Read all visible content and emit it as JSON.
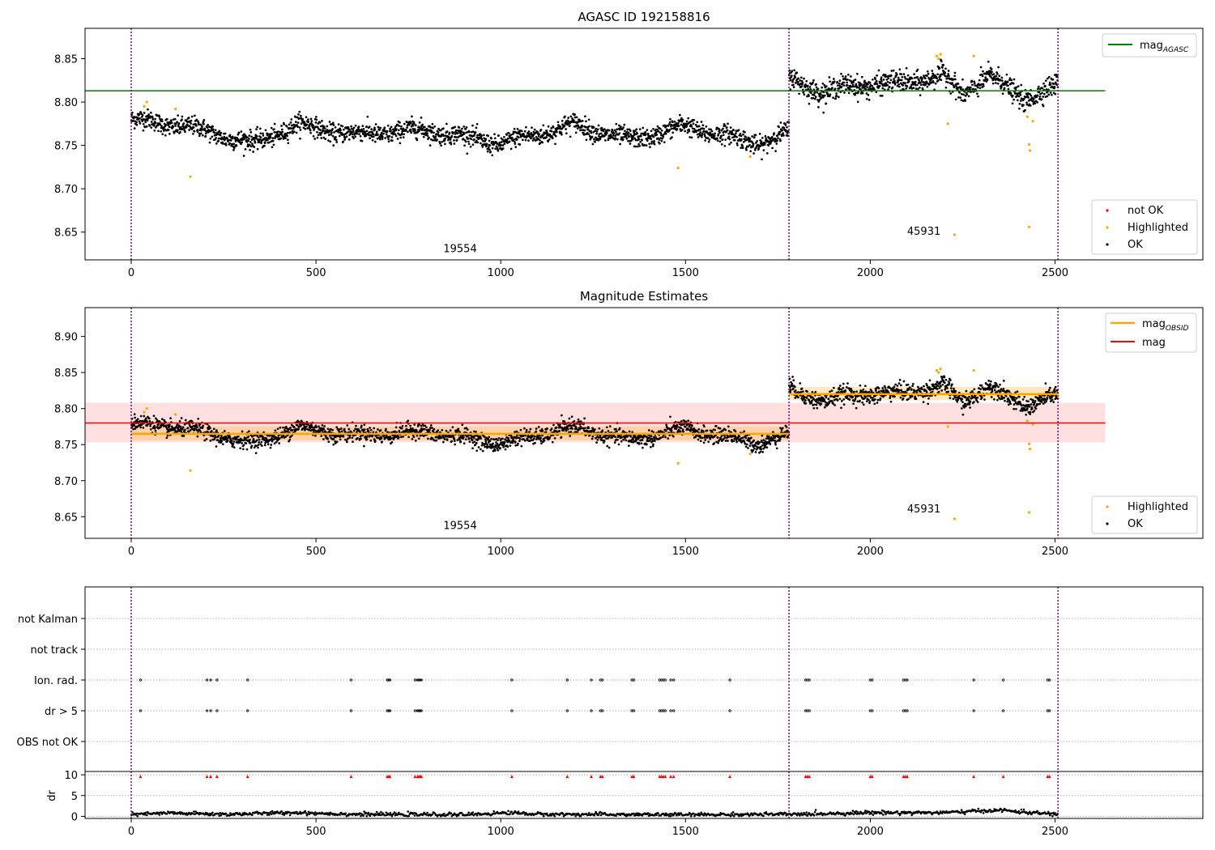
{
  "chart_data": [
    {
      "type": "scatter",
      "title": "AGASC ID 192158816",
      "xlabel": "",
      "ylabel": "",
      "xlim": [
        -125,
        2900
      ],
      "ylim": [
        8.618,
        8.885
      ],
      "xticks": [
        "0",
        "500",
        "1000",
        "1500",
        "2000",
        "2500"
      ],
      "yticks": [
        "8.65",
        "8.70",
        "8.75",
        "8.80",
        "8.85"
      ],
      "obsid_boundaries": [
        0,
        1780,
        2508
      ],
      "obsid_labels": [
        {
          "text": "19554",
          "x": 890,
          "y": 8.627
        },
        {
          "text": "45931",
          "x": 2145,
          "y": 8.647
        }
      ],
      "lines": [
        {
          "name": "mag_AGASC",
          "legend": "mag",
          "legend_sub": "AGASC",
          "color": "#008000",
          "y": 8.813,
          "x_range": [
            -125,
            2636
          ]
        }
      ],
      "series": [
        {
          "name": "not OK",
          "color": "#ff0000",
          "points": []
        },
        {
          "name": "Highlighted",
          "color": "#ffa500",
          "points": [
            [
              35,
              8.795
            ],
            [
              42,
              8.8
            ],
            [
              120,
              8.792
            ],
            [
              160,
              8.714
            ],
            [
              1480,
              8.724
            ],
            [
              1675,
              8.737
            ],
            [
              2180,
              8.853
            ],
            [
              2190,
              8.855
            ],
            [
              2185,
              8.85
            ],
            [
              2210,
              8.775
            ],
            [
              2228,
              8.647
            ],
            [
              2280,
              8.853
            ],
            [
              2425,
              8.783
            ],
            [
              2430,
              8.751
            ],
            [
              2432,
              8.744
            ],
            [
              2430,
              8.656
            ],
            [
              2440,
              8.778
            ]
          ]
        },
        {
          "name": "OK",
          "color": "#000000",
          "segments": [
            {
              "x0": 0,
              "x1": 1780,
              "levels": [
                [
                  0,
                  8.78
                ],
                [
                  150,
                  8.772
                ],
                [
                  330,
                  8.752
                ],
                [
                  450,
                  8.774
                ],
                [
                  600,
                  8.763
                ],
                [
                  800,
                  8.768
                ],
                [
                  1000,
                  8.752
                ],
                [
                  1200,
                  8.774
                ],
                [
                  1350,
                  8.756
                ],
                [
                  1500,
                  8.772
                ],
                [
                  1700,
                  8.752
                ],
                [
                  1780,
                  8.765
                ]
              ],
              "spread": 0.009
            },
            {
              "x0": 1780,
              "x1": 2508,
              "levels": [
                [
                  1780,
                  8.828
                ],
                [
                  1880,
                  8.81
                ],
                [
                  1950,
                  8.82
                ],
                [
                  2050,
                  8.82
                ],
                [
                  2200,
                  8.83
                ],
                [
                  2250,
                  8.81
                ],
                [
                  2320,
                  8.83
                ],
                [
                  2420,
                  8.804
                ],
                [
                  2508,
                  8.818
                ]
              ],
              "spread": 0.01
            }
          ]
        }
      ],
      "legend": {
        "placement": "lower-right",
        "entries": [
          "not OK",
          "Highlighted",
          "OK"
        ]
      }
    },
    {
      "type": "scatter",
      "title": "Magnitude Estimates",
      "xlabel": "",
      "ylabel": "",
      "xlim": [
        -125,
        2900
      ],
      "ylim": [
        8.62,
        8.94
      ],
      "xticks": [
        "0",
        "500",
        "1000",
        "1500",
        "2000",
        "2500"
      ],
      "yticks": [
        "8.65",
        "8.70",
        "8.75",
        "8.80",
        "8.85",
        "8.90"
      ],
      "obsid_boundaries": [
        0,
        1780,
        2508
      ],
      "obsid_labels": [
        {
          "text": "19554",
          "x": 890,
          "y": 8.633
        },
        {
          "text": "45931",
          "x": 2145,
          "y": 8.656
        }
      ],
      "bands": [
        {
          "name": "mag",
          "color": "#ff0000",
          "y0": 8.753,
          "y1": 8.808,
          "x_range": [
            -125,
            2636
          ]
        },
        {
          "name": "mag_OBSID 19554",
          "color": "#ffa500",
          "y0": 8.756,
          "y1": 8.775,
          "x_range": [
            0,
            1780
          ]
        },
        {
          "name": "mag_OBSID 45931",
          "color": "#ffa500",
          "y0": 8.812,
          "y1": 8.83,
          "x_range": [
            1780,
            2508
          ]
        }
      ],
      "lines": [
        {
          "name": "mag_OBSID",
          "legend": "mag",
          "legend_sub": "OBSID",
          "color": "#ffa500",
          "segments": [
            [
              0,
              1780,
              8.765
            ],
            [
              1780,
              2508,
              8.82
            ]
          ]
        },
        {
          "name": "mag",
          "legend": "mag",
          "color": "#ff0000",
          "y": 8.78,
          "x_range": [
            -125,
            2636
          ]
        }
      ],
      "series": [
        {
          "name": "Highlighted",
          "color": "#ffa500",
          "points": [
            [
              35,
              8.795
            ],
            [
              42,
              8.8
            ],
            [
              120,
              8.792
            ],
            [
              160,
              8.714
            ],
            [
              1480,
              8.724
            ],
            [
              1675,
              8.737
            ],
            [
              2180,
              8.853
            ],
            [
              2190,
              8.855
            ],
            [
              2185,
              8.85
            ],
            [
              2210,
              8.775
            ],
            [
              2228,
              8.647
            ],
            [
              2280,
              8.853
            ],
            [
              2425,
              8.783
            ],
            [
              2430,
              8.751
            ],
            [
              2432,
              8.744
            ],
            [
              2430,
              8.656
            ],
            [
              2440,
              8.778
            ]
          ]
        },
        {
          "name": "OK",
          "color": "#000000",
          "segments": [
            {
              "x0": 0,
              "x1": 1780,
              "levels": [
                [
                  0,
                  8.78
                ],
                [
                  150,
                  8.772
                ],
                [
                  330,
                  8.752
                ],
                [
                  450,
                  8.774
                ],
                [
                  600,
                  8.763
                ],
                [
                  800,
                  8.768
                ],
                [
                  1000,
                  8.752
                ],
                [
                  1200,
                  8.774
                ],
                [
                  1350,
                  8.756
                ],
                [
                  1500,
                  8.772
                ],
                [
                  1700,
                  8.752
                ],
                [
                  1780,
                  8.765
                ]
              ],
              "spread": 0.009
            },
            {
              "x0": 1780,
              "x1": 2508,
              "levels": [
                [
                  1780,
                  8.828
                ],
                [
                  1880,
                  8.81
                ],
                [
                  1950,
                  8.82
                ],
                [
                  2050,
                  8.82
                ],
                [
                  2200,
                  8.83
                ],
                [
                  2250,
                  8.81
                ],
                [
                  2320,
                  8.83
                ],
                [
                  2420,
                  8.804
                ],
                [
                  2508,
                  8.818
                ]
              ],
              "spread": 0.01
            }
          ]
        }
      ],
      "legend_top": {
        "placement": "upper-right",
        "entries": [
          "mag_OBSID",
          "mag"
        ]
      },
      "legend_bottom": {
        "placement": "lower-right",
        "entries": [
          "Highlighted",
          "OK"
        ]
      }
    },
    {
      "type": "scatter",
      "title": "",
      "xlim": [
        -125,
        2900
      ],
      "xticks": [
        "0",
        "500",
        "1000",
        "1500",
        "2000",
        "2500"
      ],
      "obsid_boundaries": [
        0,
        1780,
        2508
      ],
      "flag_rows": [
        "not Kalman",
        "not track",
        "Ion. rad.",
        "dr > 5",
        "OBS not OK"
      ],
      "flag_events": {
        "Ion. rad.": [
          25,
          205,
          215,
          232,
          315,
          595,
          693,
          697,
          700,
          768,
          775,
          778,
          782,
          785,
          1030,
          1180,
          1245,
          1270,
          1275,
          1355,
          1360,
          1430,
          1435,
          1440,
          1445,
          1460,
          1468,
          1620,
          1825,
          1830,
          1835,
          2000,
          2005,
          2090,
          2095,
          2100,
          2280,
          2360,
          2480,
          2485
        ],
        "dr > 5": [
          25,
          205,
          215,
          232,
          315,
          595,
          693,
          697,
          700,
          768,
          775,
          778,
          782,
          785,
          1030,
          1180,
          1245,
          1270,
          1275,
          1355,
          1360,
          1430,
          1435,
          1440,
          1445,
          1460,
          1468,
          1620,
          1825,
          1830,
          1835,
          2000,
          2005,
          2090,
          2095,
          2100,
          2280,
          2360,
          2480,
          2485
        ]
      },
      "dr": {
        "ylabel": "dr",
        "ylim": [
          -0.5,
          10.8
        ],
        "yticks": [
          "0",
          "5",
          "10"
        ],
        "clip_marker_y": 9.6,
        "clip_color": "#ff0000",
        "levels": [
          [
            0,
            0.4
          ],
          [
            100,
            0.8
          ],
          [
            250,
            0.5
          ],
          [
            450,
            0.9
          ],
          [
            600,
            0.5
          ],
          [
            900,
            0.4
          ],
          [
            1030,
            0.9
          ],
          [
            1100,
            0.5
          ],
          [
            1500,
            0.4
          ],
          [
            1800,
            0.5
          ],
          [
            2000,
            0.9
          ],
          [
            2200,
            0.9
          ],
          [
            2350,
            1.5
          ],
          [
            2450,
            0.8
          ],
          [
            2508,
            0.5
          ]
        ]
      }
    }
  ]
}
